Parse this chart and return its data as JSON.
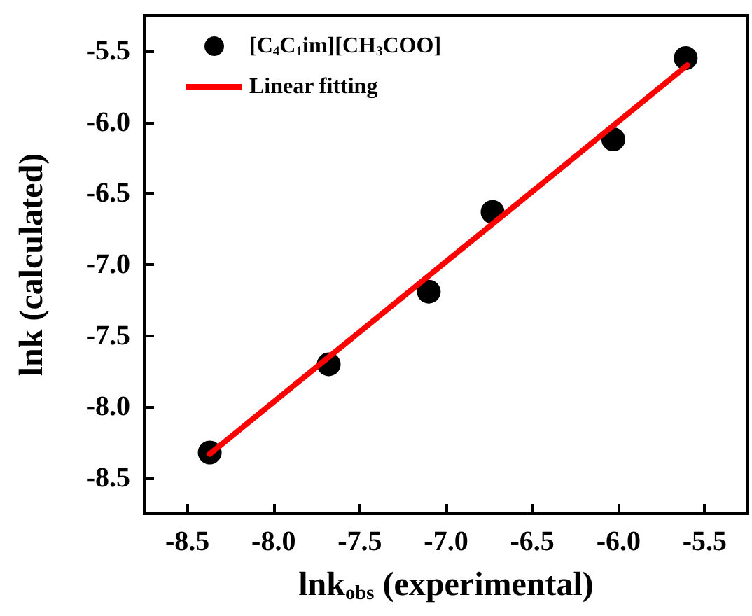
{
  "chart_data": {
    "type": "scatter",
    "xlabel": "lnk$_{obs}$ (experimental)",
    "ylabel": "lnk (calculated)",
    "xlim": [
      -8.75,
      -5.25
    ],
    "xticks": [
      -8.5,
      {
        "value": -8,
        "label": "-8.0"
      },
      -7.5,
      {
        "value": -7,
        "label": "-7.0"
      },
      -6.5,
      {
        "value": -6,
        "label": "-6.0"
      },
      -5.5
    ],
    "ylim": [
      -8.75,
      -5.25
    ],
    "yticks": [
      -8.5,
      {
        "value": -8,
        "label": "-8.0"
      },
      -7.5,
      {
        "value": -7,
        "label": "-7.0"
      },
      -6.5,
      {
        "value": -6,
        "label": "-6.0"
      },
      -5.5
    ],
    "grid": false,
    "legend": "top left",
    "marker": "circle",
    "series": [
      {
        "name": "[C$_{4}$C$_{1}$im][CH$_{3}$COO]",
        "color": "#000000",
        "x": [
          -8.37,
          -7.68,
          -7.1,
          -6.73,
          -6.03,
          -5.61
        ],
        "values": [
          -8.32,
          -7.7,
          -7.19,
          -6.63,
          -6.12,
          -5.55
        ]
      },
      {
        "name": "Linear fitting",
        "type": "line",
        "color": "#ff0000",
        "marker": "none",
        "line_style": "solid",
        "x": [
          -8.37,
          -5.6
        ],
        "values": [
          -8.33,
          -5.6
        ]
      }
    ]
  }
}
